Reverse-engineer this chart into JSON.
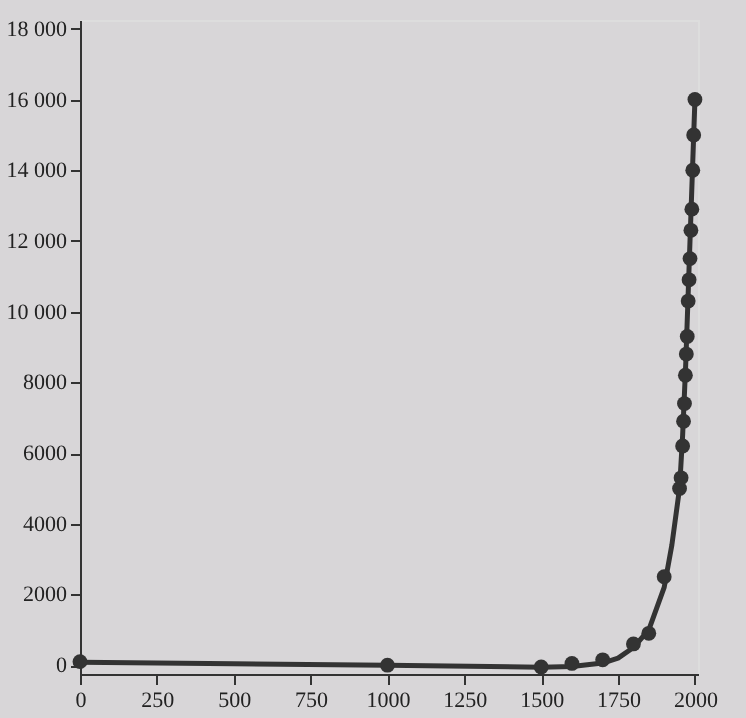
{
  "chart_data": {
    "type": "scatter",
    "xlim": [
      0,
      2010
    ],
    "ylim": [
      -250,
      18250
    ],
    "xticks": [
      0,
      250,
      500,
      750,
      1000,
      1250,
      1500,
      1750,
      2000
    ],
    "yticks": [
      0,
      2000,
      4000,
      6000,
      {
        "value": 8000,
        "label": "8000"
      },
      {
        "value": 10000,
        "label": "10 000"
      },
      {
        "value": 12000,
        "label": "12 000"
      },
      {
        "value": 14000,
        "label": "14 000"
      },
      {
        "value": 16000,
        "label": "16 000"
      },
      {
        "value": 18000,
        "label": "18 000"
      }
    ],
    "series": [
      {
        "type": "line",
        "color": "#333333",
        "line_style": "solid",
        "x": [
          0,
          500,
          1000,
          1500,
          1600,
          1700,
          1750,
          1800,
          1850,
          1900,
          1925,
          1950,
          1960,
          1970,
          1980,
          1990,
          2000
        ],
        "values": [
          80,
          40,
          0,
          -60,
          -40,
          60,
          200,
          500,
          1000,
          2200,
          3400,
          5000,
          6500,
          8500,
          11000,
          13500,
          16000
        ]
      },
      {
        "color": "#333333",
        "marker": "circle",
        "x": [
          0,
          1000,
          1500,
          1600,
          1700,
          1800,
          1850,
          1900,
          1950,
          1955,
          1960,
          1963,
          1966,
          1969,
          1972,
          1975,
          1978,
          1981,
          1984,
          1987,
          1990,
          1993,
          1996,
          2000
        ],
        "values": [
          100,
          0,
          -50,
          50,
          150,
          600,
          900,
          2500,
          5000,
          5300,
          6200,
          6900,
          7400,
          8200,
          8800,
          9300,
          10300,
          10900,
          11500,
          12300,
          12900,
          14000,
          15000,
          16000
        ]
      }
    ]
  }
}
